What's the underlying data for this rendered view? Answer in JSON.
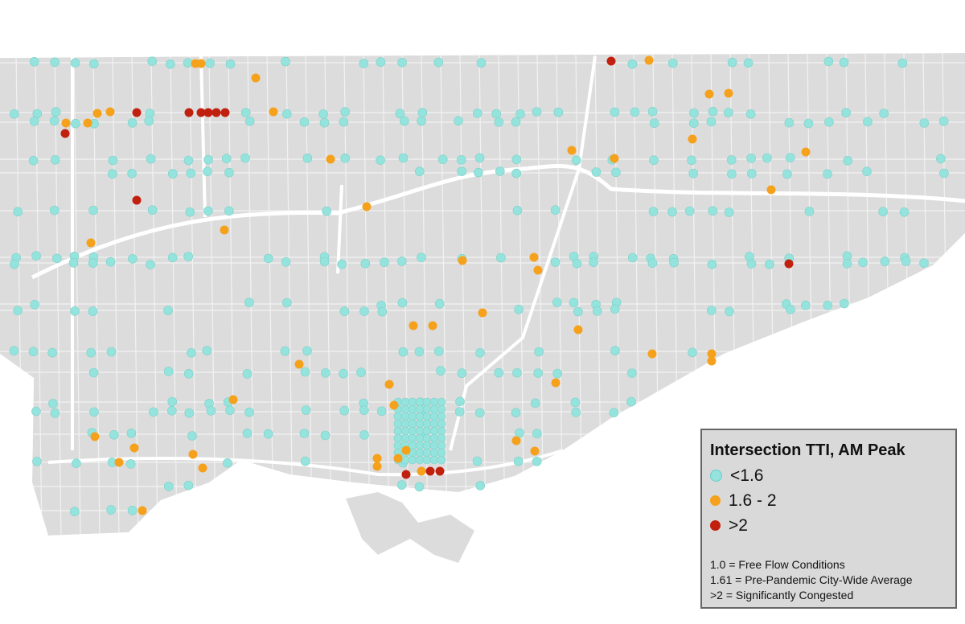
{
  "map": {
    "land_color": "#dcdcdc",
    "road_color": "#ffffff",
    "water_color": "#ffffff"
  },
  "legend": {
    "title": "Intersection TTI, AM Peak",
    "categories": [
      {
        "label": "<1.6",
        "color": "#94e3dc"
      },
      {
        "label": "1.6 - 2",
        "color": "#f5a11c"
      },
      {
        "label": ">2",
        "color": "#c2200e"
      }
    ],
    "notes": [
      "1.0 = Free Flow Conditions",
      "1.61 = Pre-Pandemic City-Wide Average",
      ">2 = Significantly Congested"
    ]
  }
}
